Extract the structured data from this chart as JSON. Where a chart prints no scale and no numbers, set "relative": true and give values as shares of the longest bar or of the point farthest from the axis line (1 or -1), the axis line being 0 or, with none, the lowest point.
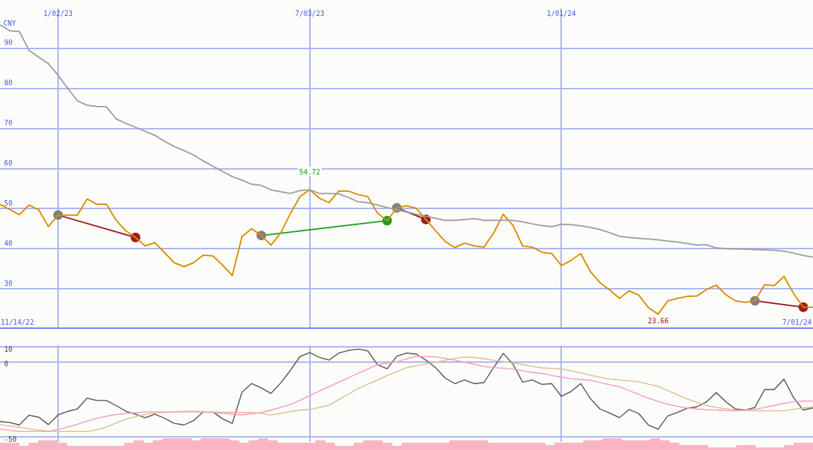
{
  "chart_data": [
    {
      "type": "line",
      "ylabel": "CNY",
      "x": [
        "2022-11-21",
        "2022-11-28",
        "2022-12-05",
        "2022-12-12",
        "2022-12-19",
        "2022-12-26",
        "2023-01-02",
        "2023-01-09",
        "2023-01-16",
        "2023-01-23",
        "2023-01-30",
        "2023-02-06",
        "2023-02-13",
        "2023-02-20",
        "2023-02-27",
        "2023-03-06",
        "2023-03-13",
        "2023-03-20",
        "2023-03-27",
        "2023-04-03",
        "2023-04-10",
        "2023-04-17",
        "2023-04-24",
        "2023-05-01",
        "2023-05-08",
        "2023-05-15",
        "2023-05-22",
        "2023-05-29",
        "2023-06-05",
        "2023-06-12",
        "2023-06-19",
        "2023-06-26",
        "2023-07-03",
        "2023-07-10",
        "2023-07-17",
        "2023-07-24",
        "2023-07-31",
        "2023-08-07",
        "2023-08-14",
        "2023-08-21",
        "2023-08-28",
        "2023-09-04",
        "2023-09-11",
        "2023-09-18",
        "2023-09-25",
        "2023-10-02",
        "2023-10-09",
        "2023-10-16",
        "2023-10-23",
        "2023-10-30",
        "2023-11-06",
        "2023-11-13",
        "2023-11-20",
        "2023-11-27",
        "2023-12-04",
        "2023-12-11",
        "2023-12-18",
        "2023-12-25",
        "2024-01-01",
        "2024-01-08",
        "2024-01-15",
        "2024-01-22",
        "2024-01-29",
        "2024-02-05",
        "2024-02-12",
        "2024-02-19",
        "2024-02-26",
        "2024-03-04",
        "2024-03-11",
        "2024-03-18",
        "2024-03-25",
        "2024-04-01",
        "2024-04-08",
        "2024-04-15",
        "2024-04-22",
        "2024-04-29",
        "2024-05-06",
        "2024-05-13",
        "2024-05-20",
        "2024-05-27",
        "2024-06-03",
        "2024-06-10",
        "2024-06-17",
        "2024-06-24",
        "2024-07-01"
      ],
      "xlim": [
        "2022-11-21",
        "2024-07-01"
      ],
      "xticks": [
        {
          "value": "2023-01-02",
          "label": "1/02/23"
        },
        {
          "value": "2023-07-03",
          "label": "7/03/23"
        },
        {
          "value": "2024-01-01",
          "label": "1/01/24"
        }
      ],
      "ylim": [
        20,
        100
      ],
      "yticks": [
        30,
        40,
        50,
        60,
        70,
        80,
        90
      ],
      "grid": true,
      "legend": false,
      "marker": "none",
      "annotations": [
        {
          "text": "54.72",
          "x": "2023-07-03",
          "y": 54.72
        },
        {
          "text": "23.66",
          "x": "2024-03-11",
          "y": 23.66
        },
        "11/14/22",
        "7/01/24"
      ],
      "series": [
        {
          "color": "#a0a0a0",
          "values": [
            95.9,
            94.4,
            94.2,
            89.5,
            87.8,
            86.2,
            83.3,
            80.0,
            76.9,
            75.8,
            75.5,
            75.4,
            72.4,
            71.3,
            70.3,
            69.3,
            68.3,
            66.8,
            65.5,
            64.5,
            63.4,
            61.9,
            60.6,
            59.3,
            58.0,
            57.1,
            56.1,
            55.8,
            54.7,
            54.2,
            53.8,
            54.5,
            54.7,
            53.8,
            53.8,
            53.7,
            52.8,
            51.7,
            51.5,
            50.9,
            50.3,
            49.7,
            49.2,
            48.6,
            48.1,
            47.6,
            47.1,
            47.1,
            47.3,
            47.5,
            47.1,
            47.1,
            47.1,
            47.1,
            46.7,
            46.2,
            45.8,
            45.5,
            46.1,
            46.0,
            45.7,
            45.3,
            44.8,
            44.0,
            43.1,
            42.8,
            42.6,
            42.4,
            42.2,
            41.9,
            41.7,
            41.3,
            40.9,
            41.0,
            40.2,
            40.0,
            39.9,
            39.9,
            39.8,
            39.7,
            39.6,
            39.4,
            38.9,
            38.3,
            37.9
          ]
        },
        {
          "color": "#d98c00",
          "values": [
            51.1,
            49.8,
            48.5,
            50.9,
            49.7,
            45.5,
            48.4,
            48.4,
            48.4,
            52.4,
            51.1,
            51.1,
            47.1,
            44.5,
            42.8,
            40.7,
            41.5,
            39.0,
            36.5,
            35.5,
            36.5,
            38.4,
            38.2,
            35.9,
            33.3,
            43.0,
            45.0,
            43.3,
            40.9,
            43.9,
            48.8,
            53.0,
            54.72,
            52.6,
            51.5,
            54.4,
            54.4,
            53.5,
            53.0,
            48.9,
            47.0,
            50.2,
            50.7,
            50.1,
            47.3,
            44.5,
            41.8,
            40.3,
            41.4,
            40.7,
            40.4,
            43.9,
            48.6,
            45.8,
            40.7,
            40.4,
            39.1,
            38.8,
            35.8,
            37.1,
            38.8,
            34.3,
            31.5,
            29.7,
            27.6,
            29.5,
            28.4,
            25.3,
            23.66,
            27.0,
            27.6,
            28.1,
            28.2,
            29.8,
            30.9,
            28.5,
            27.0,
            26.6,
            27.0,
            31.0,
            30.8,
            33.1,
            28.8,
            25.4,
            25.4
          ]
        },
        {
          "color": "#a01c1c",
          "colors": [
            "#808080",
            "#a01c1c"
          ],
          "marker": "circle",
          "x": [
            "2023-01-02",
            "2023-02-27"
          ],
          "values": [
            48.4,
            42.8
          ]
        },
        {
          "color": "#22a022",
          "colors": [
            "#808080",
            "#22a022"
          ],
          "marker": "circle",
          "x": [
            "2023-05-29",
            "2023-08-28"
          ],
          "values": [
            43.3,
            47.0
          ]
        },
        {
          "color": "#a01c1c",
          "colors": [
            "#808080",
            "#a01c1c"
          ],
          "marker": "circle",
          "x": [
            "2023-09-04",
            "2023-09-25"
          ],
          "values": [
            50.2,
            47.3
          ]
        },
        {
          "color": "#a01c1c",
          "colors": [
            "#808080",
            "#a01c1c"
          ],
          "marker": "circle",
          "x": [
            "2024-05-20",
            "2024-06-24"
          ],
          "values": [
            27.0,
            25.4
          ]
        }
      ]
    },
    {
      "type": "line",
      "x": [
        "2022-11-21",
        "2022-11-28",
        "2022-12-05",
        "2022-12-12",
        "2022-12-19",
        "2022-12-26",
        "2023-01-02",
        "2023-01-09",
        "2023-01-16",
        "2023-01-23",
        "2023-01-30",
        "2023-02-06",
        "2023-02-13",
        "2023-02-20",
        "2023-02-27",
        "2023-03-06",
        "2023-03-13",
        "2023-03-20",
        "2023-03-27",
        "2023-04-03",
        "2023-04-10",
        "2023-04-17",
        "2023-04-24",
        "2023-05-01",
        "2023-05-08",
        "2023-05-15",
        "2023-05-22",
        "2023-05-29",
        "2023-06-05",
        "2023-06-12",
        "2023-06-19",
        "2023-06-26",
        "2023-07-03",
        "2023-07-10",
        "2023-07-17",
        "2023-07-24",
        "2023-07-31",
        "2023-08-07",
        "2023-08-14",
        "2023-08-21",
        "2023-08-28",
        "2023-09-04",
        "2023-09-11",
        "2023-09-18",
        "2023-09-25",
        "2023-10-02",
        "2023-10-09",
        "2023-10-16",
        "2023-10-23",
        "2023-10-30",
        "2023-11-06",
        "2023-11-13",
        "2023-11-20",
        "2023-11-27",
        "2023-12-04",
        "2023-12-11",
        "2023-12-18",
        "2023-12-25",
        "2024-01-01",
        "2024-01-08",
        "2024-01-15",
        "2024-01-22",
        "2024-01-29",
        "2024-02-05",
        "2024-02-12",
        "2024-02-19",
        "2024-02-26",
        "2024-03-04",
        "2024-03-11",
        "2024-03-18",
        "2024-03-25",
        "2024-04-01",
        "2024-04-08",
        "2024-04-15",
        "2024-04-22",
        "2024-04-29",
        "2024-05-06",
        "2024-05-13",
        "2024-05-20",
        "2024-05-27",
        "2024-06-03",
        "2024-06-10",
        "2024-06-17",
        "2024-06-24",
        "2024-07-01"
      ],
      "xlim": [
        "2022-11-21",
        "2024-07-01"
      ],
      "xticks": [
        {
          "value": "2023-01-02",
          "label": null
        },
        {
          "value": "2023-07-03",
          "label": null
        },
        {
          "value": "2024-01-01",
          "label": null
        }
      ],
      "ylim": [
        -53,
        11
      ],
      "yticks": [
        10,
        0,
        -50
      ],
      "tick_labels": "y",
      "grid": true,
      "legend": false,
      "marker": "none",
      "series": [
        {
          "color": "#f9a0c0",
          "values": [
            -44.6,
            -45.5,
            -46.2,
            -46.2,
            -46.2,
            -46.2,
            -44.9,
            -43.2,
            -41.5,
            -39.3,
            -37.5,
            -36.1,
            -34.9,
            -34.2,
            -33.7,
            -33.2,
            -33.2,
            -33.2,
            -33.2,
            -33.2,
            -33.2,
            -33.4,
            -33.5,
            -34.1,
            -34.7,
            -35.2,
            -34.5,
            -33.6,
            -32.0,
            -30.2,
            -28.3,
            -25.5,
            -22.3,
            -19.3,
            -16.4,
            -13.4,
            -10.5,
            -7.5,
            -4.7,
            -1.8,
            -0.7,
            0.2,
            2.0,
            3.8,
            3.6,
            3.4,
            2.3,
            1.2,
            -0.1,
            -1.5,
            -2.9,
            -3.7,
            -4.1,
            -4.8,
            -5.8,
            -6.9,
            -7.6,
            -8.9,
            -10.0,
            -11.1,
            -11.6,
            -12.2,
            -13.6,
            -15.1,
            -16.4,
            -19.0,
            -21.6,
            -24.1,
            -26.2,
            -28.1,
            -29.5,
            -30.6,
            -31.3,
            -31.7,
            -32.0,
            -32.3,
            -32.5,
            -32.0,
            -31.5,
            -30.2,
            -28.9,
            -27.5,
            -26.4,
            -26.0,
            -26.0
          ]
        },
        {
          "color": "#e0c090",
          "values": [
            -41.6,
            -42.5,
            -43.4,
            -44.5,
            -45.3,
            -46.0,
            -46.2,
            -46.2,
            -46.2,
            -46.2,
            -45.1,
            -43.3,
            -40.6,
            -38.0,
            -36.4,
            -34.9,
            -33.8,
            -33.5,
            -33.2,
            -32.9,
            -32.8,
            -33.0,
            -33.2,
            -33.4,
            -33.5,
            -33.6,
            -33.6,
            -34.1,
            -35.3,
            -34.2,
            -33.0,
            -32.0,
            -31.6,
            -30.2,
            -28.8,
            -24.9,
            -21.4,
            -17.6,
            -14.8,
            -12.0,
            -9.0,
            -6.4,
            -3.8,
            -2.5,
            -1.3,
            -0.2,
            1.1,
            2.4,
            3.3,
            3.0,
            2.2,
            1.2,
            0.3,
            -0.6,
            -1.6,
            -2.9,
            -3.9,
            -4.3,
            -4.6,
            -5.8,
            -7.3,
            -8.8,
            -10.2,
            -11.3,
            -11.9,
            -12.5,
            -13.2,
            -14.8,
            -16.3,
            -19.0,
            -21.8,
            -24.6,
            -26.8,
            -28.9,
            -30.2,
            -31.2,
            -32.0,
            -32.3,
            -32.4,
            -32.5,
            -32.5,
            -32.4,
            -31.5,
            -30.6,
            -29.9
          ]
        },
        {
          "color": "#606060",
          "values": [
            -39.6,
            -40.2,
            -41.9,
            -35.4,
            -36.7,
            -41.6,
            -35.2,
            -32.8,
            -31.2,
            -24.0,
            -25.6,
            -25.6,
            -29.0,
            -32.7,
            -34.7,
            -37.1,
            -34.7,
            -37.4,
            -40.8,
            -41.9,
            -39.0,
            -33.2,
            -33.2,
            -37.8,
            -40.8,
            -20.2,
            -14.3,
            -17.3,
            -20.9,
            -14.0,
            -5.6,
            3.6,
            6.3,
            3.1,
            1.3,
            5.9,
            7.7,
            8.6,
            7.4,
            -1.8,
            -4.5,
            3.9,
            5.9,
            5.3,
            1.3,
            -3.7,
            -10.7,
            -14.4,
            -11.9,
            -14.4,
            -13.7,
            -3.7,
            5.7,
            -1.4,
            -13.4,
            -11.9,
            -14.9,
            -14.4,
            -22.8,
            -19.6,
            -14.4,
            -24.3,
            -31.3,
            -34.0,
            -37.0,
            -31.6,
            -34.3,
            -42.0,
            -44.7,
            -35.8,
            -33.5,
            -30.8,
            -29.8,
            -26.5,
            -20.4,
            -26.5,
            -31.3,
            -32.0,
            -30.2,
            -18.3,
            -18.3,
            -11.4,
            -23.8,
            -32.0,
            -30.5
          ]
        }
      ]
    },
    {
      "type": "bar",
      "relative": true,
      "legend": false,
      "color": "#f9b4c8",
      "categories": [
        null,
        null,
        null,
        null,
        null,
        null,
        null,
        null,
        null,
        null,
        null,
        null,
        null,
        null,
        null,
        null,
        null,
        null,
        null,
        null,
        null,
        null,
        null,
        null,
        null,
        null,
        null,
        null,
        null,
        null,
        null,
        null,
        null,
        null,
        null,
        null,
        null,
        null,
        null,
        null,
        null,
        null,
        null,
        null,
        null,
        null,
        null,
        null,
        null,
        null,
        null,
        null,
        null,
        null,
        null,
        null,
        null,
        null,
        null,
        null,
        null,
        null,
        null,
        null,
        null,
        null,
        null,
        null,
        null,
        null,
        null,
        null,
        null,
        null,
        null,
        null,
        null,
        null,
        null,
        null,
        null,
        null,
        null,
        null,
        null
      ],
      "values": [
        0.6,
        0.6,
        0.33,
        0.6,
        0.8,
        0.8,
        0.6,
        0.33,
        0.33,
        0.33,
        0.33,
        0.33,
        0.33,
        0.6,
        0.8,
        0.6,
        0.8,
        1,
        1,
        1,
        0.8,
        1,
        1,
        1,
        0.8,
        0.6,
        0.8,
        1,
        0.8,
        0.6,
        0.6,
        0.6,
        0.6,
        0.8,
        0.6,
        0.33,
        0.33,
        0.6,
        0.8,
        0.8,
        0.6,
        0.33,
        0.6,
        0.6,
        0.6,
        0.6,
        0.6,
        0.8,
        0.8,
        0.8,
        0.8,
        0.6,
        0.6,
        0.6,
        0.6,
        0.6,
        0.6,
        0.4,
        0.6,
        0.6,
        0.6,
        0.8,
        0.8,
        1,
        1,
        0.8,
        0.8,
        0.8,
        1,
        0.8,
        0.6,
        0.4,
        0.4,
        0.4,
        0.2,
        0.2,
        0.2,
        0.4,
        0.4,
        0.2,
        0.2,
        0.2,
        0.4,
        0.6,
        0.6
      ]
    }
  ]
}
